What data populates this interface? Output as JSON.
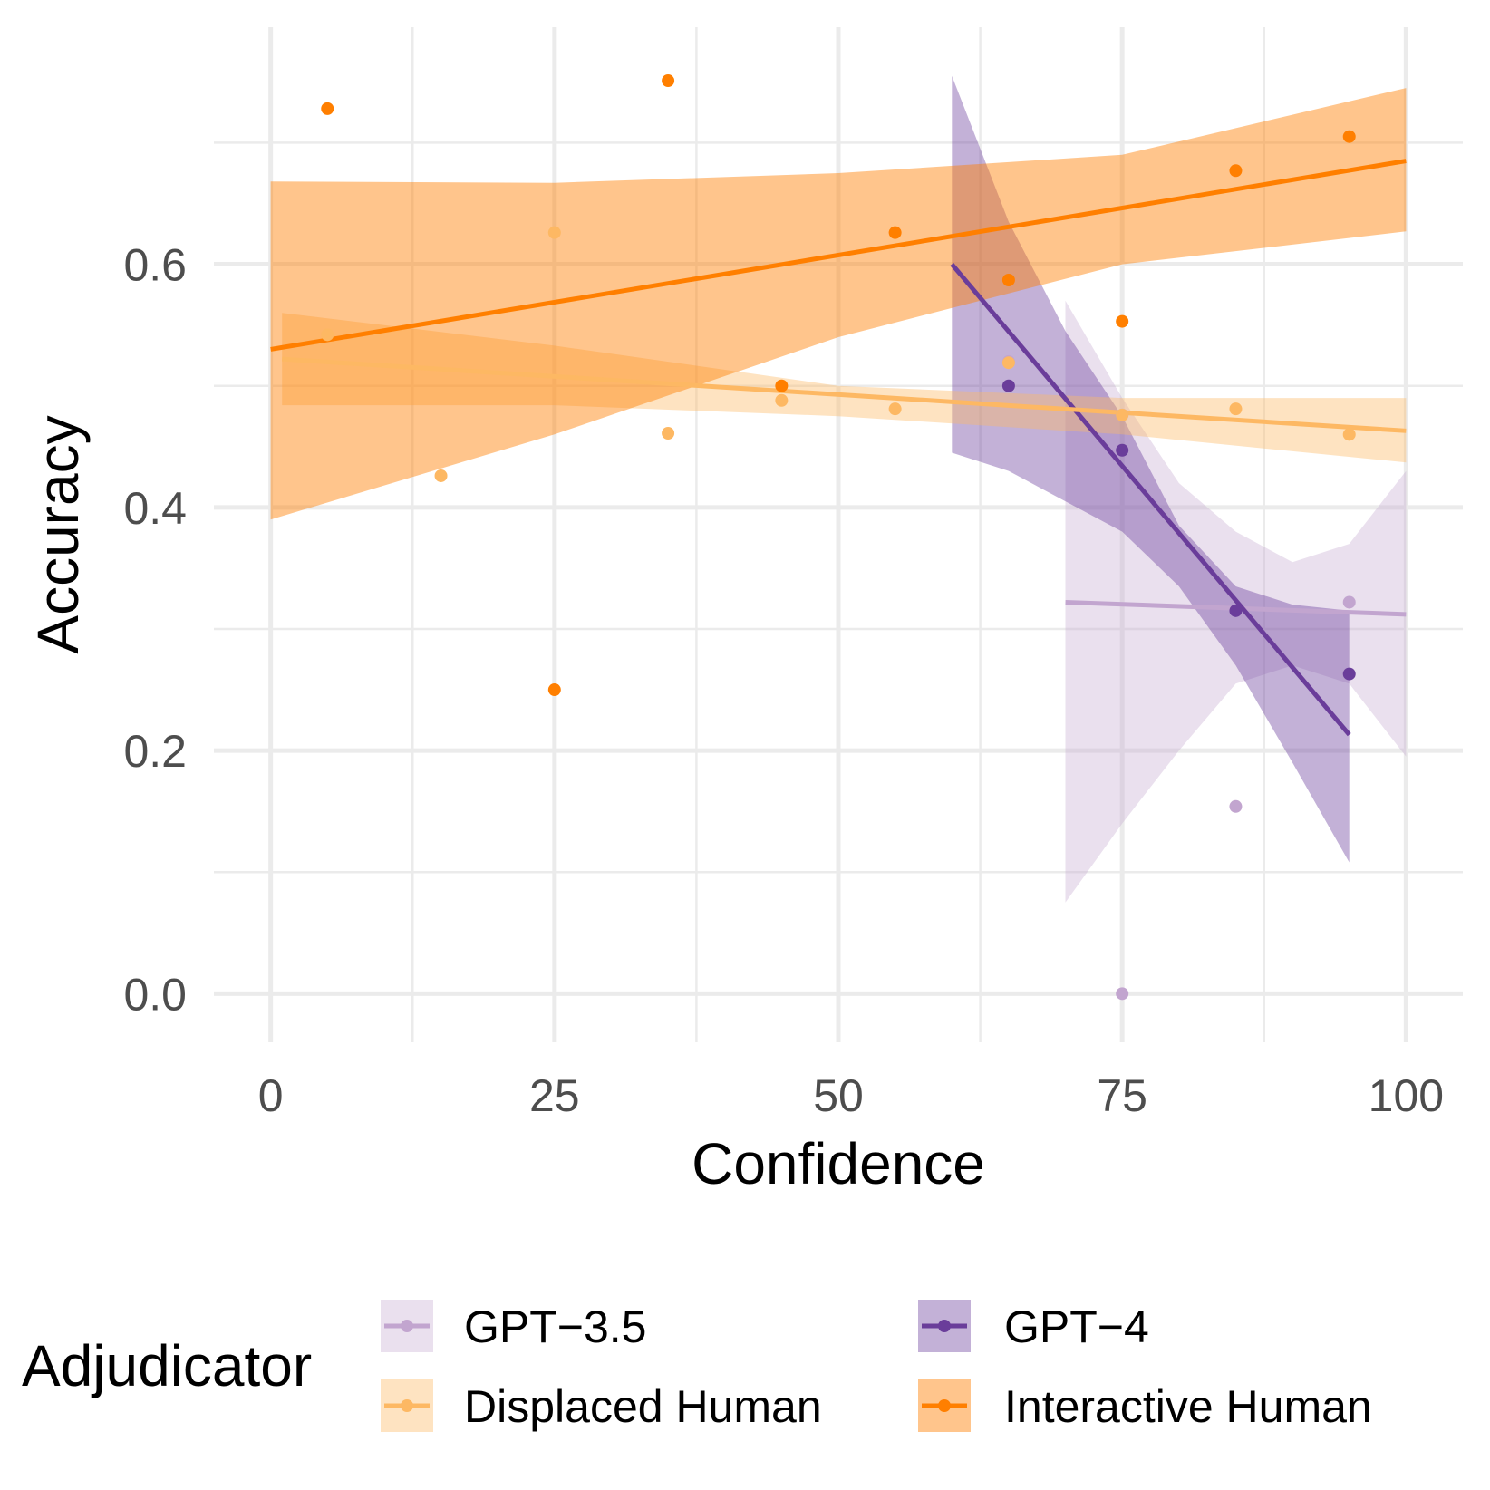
{
  "chart_data": {
    "type": "scatter",
    "title": "",
    "xlabel": "Confidence",
    "ylabel": "Accuracy",
    "xlim": [
      -5,
      105
    ],
    "ylim": [
      -0.04,
      0.795
    ],
    "xticks": [
      0,
      25,
      50,
      75,
      100
    ],
    "xtick_labels": [
      "0",
      "25",
      "50",
      "75",
      "100"
    ],
    "yticks": [
      0.0,
      0.2,
      0.4,
      0.6
    ],
    "ytick_labels": [
      "0.0",
      "0.2",
      "0.4",
      "0.6"
    ],
    "grid": true,
    "legend": {
      "title": "Adjudicator",
      "position": "bottom",
      "columns": 2
    },
    "series": [
      {
        "name": "GPT−3.5",
        "color": "#c2a5cf",
        "points": [
          [
            65,
            0.52
          ],
          [
            75,
            0.476
          ],
          [
            75,
            0.0
          ],
          [
            85,
            0.154
          ],
          [
            95,
            0.322
          ]
        ],
        "trend": {
          "x": [
            70,
            100
          ],
          "y": [
            0.322,
            0.312
          ]
        },
        "band": {
          "x": [
            70,
            75,
            80,
            85,
            90,
            95,
            100
          ],
          "lower": [
            0.075,
            0.14,
            0.2,
            0.255,
            0.27,
            0.255,
            0.195
          ],
          "upper": [
            0.57,
            0.49,
            0.42,
            0.38,
            0.355,
            0.37,
            0.43
          ]
        },
        "band_opacity": 0.35
      },
      {
        "name": "GPT−4",
        "color": "#6a3d9a",
        "points": [
          [
            65,
            0.5
          ],
          [
            75,
            0.447
          ],
          [
            85,
            0.315
          ],
          [
            95,
            0.263
          ]
        ],
        "trend": {
          "x": [
            60,
            95
          ],
          "y": [
            0.6,
            0.213
          ]
        },
        "band": {
          "x": [
            60,
            65,
            70,
            75,
            80,
            85,
            90,
            95
          ],
          "lower": [
            0.445,
            0.43,
            0.405,
            0.38,
            0.335,
            0.27,
            0.19,
            0.108
          ],
          "upper": [
            0.755,
            0.635,
            0.545,
            0.475,
            0.385,
            0.335,
            0.32,
            0.315
          ]
        },
        "band_opacity": 0.4
      },
      {
        "name": "Displaced Human",
        "color": "#fdb863",
        "points": [
          [
            5,
            0.542
          ],
          [
            15,
            0.426
          ],
          [
            25,
            0.626
          ],
          [
            35,
            0.461
          ],
          [
            45,
            0.488
          ],
          [
            55,
            0.481
          ],
          [
            65,
            0.519
          ],
          [
            75,
            0.476
          ],
          [
            85,
            0.481
          ],
          [
            95,
            0.46
          ]
        ],
        "trend": {
          "x": [
            1,
            100
          ],
          "y": [
            0.522,
            0.463
          ]
        },
        "band": {
          "x": [
            1,
            25,
            50,
            75,
            100
          ],
          "lower": [
            0.484,
            0.484,
            0.475,
            0.46,
            0.437
          ],
          "upper": [
            0.56,
            0.533,
            0.5,
            0.49,
            0.49
          ]
        },
        "band_opacity": 0.4
      },
      {
        "name": "Interactive Human",
        "color": "#ff7f00",
        "points": [
          [
            5,
            0.728
          ],
          [
            25,
            0.25
          ],
          [
            35,
            0.751
          ],
          [
            45,
            0.5
          ],
          [
            55,
            0.626
          ],
          [
            65,
            0.587
          ],
          [
            75,
            0.553
          ],
          [
            85,
            0.677
          ],
          [
            95,
            0.705
          ]
        ],
        "trend": {
          "x": [
            0,
            100
          ],
          "y": [
            0.53,
            0.685
          ]
        },
        "band": {
          "x": [
            0,
            25,
            50,
            75,
            100
          ],
          "lower": [
            0.39,
            0.46,
            0.54,
            0.6,
            0.627
          ],
          "upper": [
            0.668,
            0.667,
            0.675,
            0.69,
            0.745
          ]
        },
        "band_opacity": 0.45
      }
    ]
  }
}
